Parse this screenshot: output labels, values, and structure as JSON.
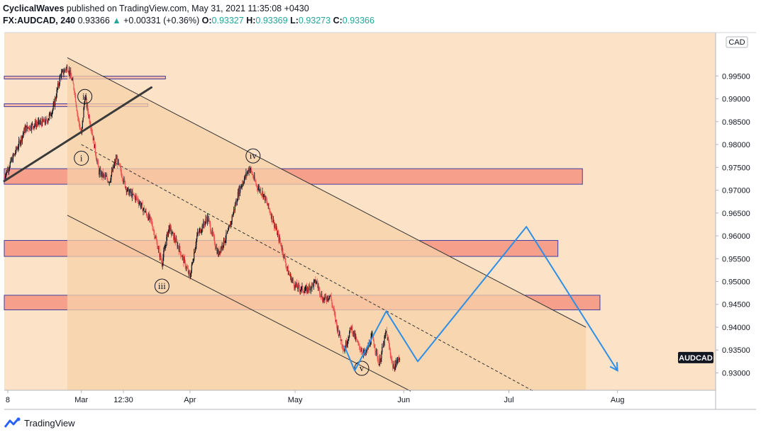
{
  "header": {
    "author": "CyclicalWaves",
    "published": "published on TradingView.com, May 31, 2021 11:35:08 +0430",
    "symbol": "FX:AUDCAD, 240",
    "last": "0.93366",
    "arrow": "▲",
    "change": "+0.00331 (+0.36%)",
    "o_label": "O:",
    "o": "0.93327",
    "h_label": "H:",
    "h": "0.93369",
    "l_label": "L:",
    "l": "0.93273",
    "c_label": "C:",
    "c": "0.93366"
  },
  "footer": {
    "brand": "TradingView",
    "logo_icon": "tradingview-logo-icon"
  },
  "colors": {
    "background": "#fce3c7",
    "zone_fill": "#f5937f",
    "zone_border": "#3f3fa0",
    "channel_fill": "#f7d2a8",
    "projection": "#2f8fe6",
    "bull": "#131722",
    "bear": "#ef5350"
  },
  "chart_data": {
    "type": "candlestick",
    "currency": "CAD",
    "price_label": "AUDCAD",
    "last_price": 0.93366,
    "ylim": [
      0.9262,
      1.0045
    ],
    "y_ticks": [
      "0.99500",
      "0.99000",
      "0.98500",
      "0.98000",
      "0.97500",
      "0.97000",
      "0.96500",
      "0.96000",
      "0.95500",
      "0.95000",
      "0.94500",
      "0.94000",
      "0.93500",
      "0.93000"
    ],
    "y_tick_values": [
      0.995,
      0.99,
      0.985,
      0.98,
      0.975,
      0.97,
      0.965,
      0.96,
      0.955,
      0.95,
      0.945,
      0.94,
      0.935,
      0.93
    ],
    "x_ticks": [
      "8",
      "Mar",
      "12:30",
      "Apr",
      "May",
      "Jun",
      "Jul",
      "Aug"
    ],
    "x_tick_dates": [
      "2021-02-08",
      "2021-03-01",
      "2021-03-13",
      "2021-04-01",
      "2021-05-01",
      "2021-06-01",
      "2021-07-01",
      "2021-08-01"
    ],
    "x_range": [
      "2021-02-07",
      "2021-08-29"
    ],
    "price_path": [
      [
        "2021-02-07",
        0.973
      ],
      [
        "2021-02-10",
        0.978
      ],
      [
        "2021-02-13",
        0.9835
      ],
      [
        "2021-02-16",
        0.9845
      ],
      [
        "2021-02-19",
        0.985
      ],
      [
        "2021-02-21",
        0.988
      ],
      [
        "2021-02-23",
        0.995
      ],
      [
        "2021-02-25",
        0.997
      ],
      [
        "2021-02-26",
        0.995
      ],
      [
        "2021-02-27",
        0.992
      ],
      [
        "2021-02-28",
        0.986
      ],
      [
        "2021-03-01",
        0.982
      ],
      [
        "2021-03-02",
        0.9905
      ],
      [
        "2021-03-04",
        0.983
      ],
      [
        "2021-03-06",
        0.974
      ],
      [
        "2021-03-09",
        0.972
      ],
      [
        "2021-03-11",
        0.977
      ],
      [
        "2021-03-14",
        0.97
      ],
      [
        "2021-03-17",
        0.968
      ],
      [
        "2021-03-21",
        0.963
      ],
      [
        "2021-03-24",
        0.954
      ],
      [
        "2021-03-26",
        0.962
      ],
      [
        "2021-03-29",
        0.957
      ],
      [
        "2021-04-01",
        0.951
      ],
      [
        "2021-04-03",
        0.96
      ],
      [
        "2021-04-06",
        0.964
      ],
      [
        "2021-04-09",
        0.956
      ],
      [
        "2021-04-12",
        0.961
      ],
      [
        "2021-04-15",
        0.97
      ],
      [
        "2021-04-18",
        0.975
      ],
      [
        "2021-04-20",
        0.971
      ],
      [
        "2021-04-22",
        0.969
      ],
      [
        "2021-04-24",
        0.965
      ],
      [
        "2021-04-27",
        0.958
      ],
      [
        "2021-04-29",
        0.952
      ],
      [
        "2021-05-01",
        0.949
      ],
      [
        "2021-05-04",
        0.948
      ],
      [
        "2021-05-07",
        0.95
      ],
      [
        "2021-05-09",
        0.946
      ],
      [
        "2021-05-11",
        0.947
      ],
      [
        "2021-05-13",
        0.94
      ],
      [
        "2021-05-15",
        0.935
      ],
      [
        "2021-05-17",
        0.94
      ],
      [
        "2021-05-19",
        0.936
      ],
      [
        "2021-05-21",
        0.934
      ],
      [
        "2021-05-23",
        0.938
      ],
      [
        "2021-05-25",
        0.932
      ],
      [
        "2021-05-27",
        0.939
      ],
      [
        "2021-05-29",
        0.931
      ],
      [
        "2021-05-31",
        0.93366
      ]
    ],
    "resistance_zones": [
      {
        "from": 0.9713,
        "to": 0.9747,
        "start": "2021-02-07",
        "end": "2021-07-22"
      },
      {
        "from": 0.9555,
        "to": 0.959,
        "start": "2021-02-07",
        "end": "2021-07-15"
      },
      {
        "from": 0.9438,
        "to": 0.947,
        "start": "2021-02-07",
        "end": "2021-07-27"
      }
    ],
    "thin_levels": [
      {
        "price": 0.99465,
        "start": "2021-02-07",
        "end": "2021-03-25"
      },
      {
        "price": 0.9886,
        "start": "2021-02-07",
        "end": "2021-03-20"
      }
    ],
    "channel": {
      "upper": [
        [
          "2021-02-25",
          0.999
        ],
        [
          "2021-07-23",
          0.94
        ]
      ],
      "lower": [
        [
          "2021-02-25",
          0.9645
        ],
        [
          "2021-06-03",
          0.926
        ]
      ],
      "mid": [
        [
          "2021-03-01",
          0.98
        ],
        [
          "2021-07-08",
          0.926
        ]
      ],
      "box_start": "2021-02-25",
      "box_end": "2021-07-23"
    },
    "trendline": [
      [
        "2021-02-07",
        0.972
      ],
      [
        "2021-03-21",
        0.9925
      ]
    ],
    "wave_labels": [
      {
        "label": "i",
        "date": "2021-03-01",
        "price": 0.977
      },
      {
        "label": "ii",
        "date": "2021-03-02",
        "price": 0.9905
      },
      {
        "label": "iii",
        "date": "2021-03-24",
        "price": 0.949
      },
      {
        "label": "iv",
        "date": "2021-04-19",
        "price": 0.9775
      },
      {
        "label": "v",
        "date": "2021-05-20",
        "price": 0.931
      }
    ],
    "projection": [
      [
        "2021-05-15",
        0.936
      ],
      [
        "2021-05-18",
        0.9305
      ],
      [
        "2021-05-27",
        0.9435
      ],
      [
        "2021-06-05",
        0.9325
      ],
      [
        "2021-07-06",
        0.962
      ],
      [
        "2021-08-01",
        0.9305
      ]
    ]
  }
}
